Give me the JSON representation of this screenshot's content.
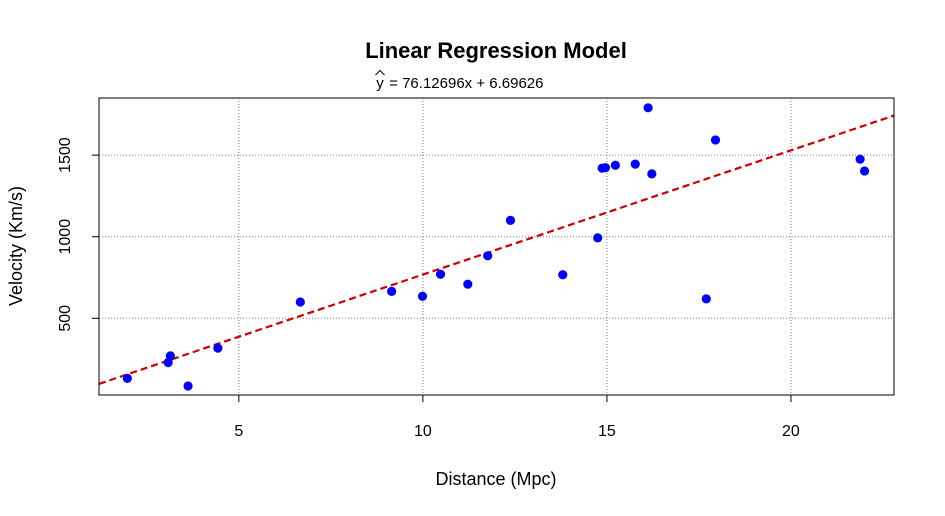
{
  "chart_data": {
    "type": "scatter",
    "title": "Linear Regression Model",
    "subtitle": {
      "yhat": "y",
      "equation": " = 76.12696x + 6.69626"
    },
    "xlabel": "Distance (Mpc)",
    "ylabel": "Velocity (Km/s)",
    "xlim": [
      1.2,
      22.8
    ],
    "ylim": [
      30,
      1850
    ],
    "xticks": [
      5,
      10,
      15,
      20
    ],
    "yticks": [
      500,
      1000,
      1500
    ],
    "xtick_labels": [
      "5",
      "10",
      "15",
      "20"
    ],
    "ytick_labels": [
      "500",
      "1000",
      "1500"
    ],
    "grid": true,
    "points": {
      "color": "#0000ff",
      "x": [
        1.97,
        3.08,
        3.14,
        3.62,
        4.43,
        6.67,
        9.15,
        9.99,
        10.48,
        11.22,
        11.76,
        12.38,
        13.8,
        14.75,
        14.87,
        14.96,
        15.23,
        15.77,
        16.12,
        16.22,
        17.7,
        17.95,
        21.88,
        22.0
      ],
      "y": [
        132,
        229,
        270,
        85,
        317,
        600,
        665,
        635,
        770,
        709,
        883,
        1100,
        767,
        993,
        1420,
        1423,
        1438,
        1445,
        1790,
        1385,
        619,
        1593,
        1475,
        1403
      ]
    },
    "regression": {
      "color": "#cc0000",
      "slope": 76.12696,
      "intercept": 6.69626
    }
  }
}
